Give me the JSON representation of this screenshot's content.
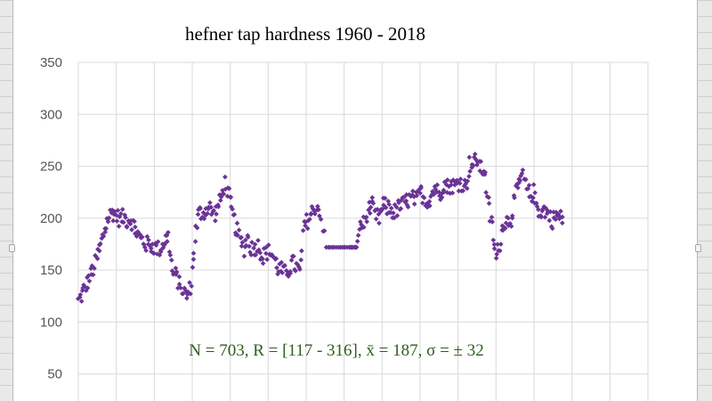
{
  "chart_data": {
    "type": "scatter",
    "title": "hefner tap hardness 1960 - 2018",
    "xlabel": "",
    "ylabel": "",
    "ylim": [
      0,
      350
    ],
    "xlim": [
      0,
      757
    ],
    "y_ticks": [
      "350",
      "300",
      "250",
      "200",
      "150",
      "100",
      "50"
    ],
    "grid": true,
    "legend": "none",
    "marker_color": "#6a3396",
    "gridline_color": "#d9d9d9",
    "annotation": "N = 703, R = [117 - 316], x̄ = 187, σ = ± 32",
    "series": [
      {
        "name": "",
        "points": [
          [
            0,
            120
          ],
          [
            5,
            127
          ],
          [
            10,
            135
          ],
          [
            15,
            143
          ],
          [
            20,
            151
          ],
          [
            25,
            162
          ],
          [
            30,
            174
          ],
          [
            35,
            188
          ],
          [
            40,
            200
          ],
          [
            45,
            206
          ],
          [
            50,
            203
          ],
          [
            55,
            199
          ],
          [
            60,
            201
          ],
          [
            65,
            198
          ],
          [
            70,
            199
          ],
          [
            75,
            190
          ],
          [
            80,
            183
          ],
          [
            85,
            179
          ],
          [
            90,
            175
          ],
          [
            95,
            174
          ],
          [
            100,
            173
          ],
          [
            105,
            170
          ],
          [
            110,
            172
          ],
          [
            115,
            179
          ],
          [
            120,
            182
          ],
          [
            125,
            148
          ],
          [
            130,
            144
          ],
          [
            135,
            136
          ],
          [
            140,
            129
          ],
          [
            145,
            125
          ],
          [
            150,
            138
          ],
          [
            155,
            182
          ],
          [
            160,
            205
          ],
          [
            165,
            205
          ],
          [
            170,
            208
          ],
          [
            175,
            210
          ],
          [
            180,
            203
          ],
          [
            185,
            210
          ],
          [
            190,
            220
          ],
          [
            195,
            234
          ],
          [
            200,
            221
          ],
          [
            205,
            204
          ],
          [
            210,
            190
          ],
          [
            215,
            179
          ],
          [
            220,
            171
          ],
          [
            225,
            182
          ],
          [
            230,
            171
          ],
          [
            235,
            172
          ],
          [
            240,
            174
          ],
          [
            245,
            162
          ],
          [
            250,
            167
          ],
          [
            255,
            168
          ],
          [
            260,
            162
          ],
          [
            265,
            152
          ],
          [
            270,
            150
          ],
          [
            275,
            147
          ],
          [
            280,
            151
          ],
          [
            285,
            157
          ],
          [
            290,
            153
          ],
          [
            295,
            147
          ],
          [
            300,
            192
          ],
          [
            305,
            198
          ],
          [
            310,
            204
          ],
          [
            315,
            211
          ],
          [
            320,
            209
          ],
          [
            330,
            172
          ],
          [
            340,
            172
          ],
          [
            350,
            172
          ],
          [
            360,
            172
          ],
          [
            365,
            172
          ],
          [
            370,
            172
          ],
          [
            375,
            195
          ],
          [
            380,
            194
          ],
          [
            385,
            208
          ],
          [
            390,
            212
          ],
          [
            395,
            202
          ],
          [
            400,
            200
          ],
          [
            405,
            213
          ],
          [
            410,
            210
          ],
          [
            415,
            209
          ],
          [
            420,
            205
          ],
          [
            425,
            210
          ],
          [
            430,
            212
          ],
          [
            435,
            216
          ],
          [
            440,
            218
          ],
          [
            445,
            219
          ],
          [
            450,
            217
          ],
          [
            455,
            226
          ],
          [
            460,
            219
          ],
          [
            465,
            216
          ],
          [
            470,
            223
          ],
          [
            475,
            231
          ],
          [
            480,
            221
          ],
          [
            485,
            234
          ],
          [
            490,
            230
          ],
          [
            495,
            232
          ],
          [
            500,
            231
          ],
          [
            505,
            234
          ],
          [
            510,
            234
          ],
          [
            515,
            230
          ],
          [
            520,
            252
          ],
          [
            525,
            252
          ],
          [
            530,
            257
          ],
          [
            535,
            247
          ],
          [
            540,
            247
          ],
          [
            545,
            213
          ],
          [
            550,
            191
          ],
          [
            555,
            160
          ],
          [
            560,
            176
          ],
          [
            565,
            196
          ],
          [
            570,
            197
          ],
          [
            575,
            199
          ],
          [
            580,
            221
          ],
          [
            585,
            230
          ],
          [
            590,
            242
          ],
          [
            595,
            231
          ],
          [
            600,
            222
          ],
          [
            605,
            225
          ],
          [
            610,
            210
          ],
          [
            615,
            206
          ],
          [
            620,
            208
          ],
          [
            625,
            204
          ],
          [
            630,
            198
          ],
          [
            635,
            203
          ],
          [
            640,
            200
          ]
        ]
      }
    ]
  }
}
